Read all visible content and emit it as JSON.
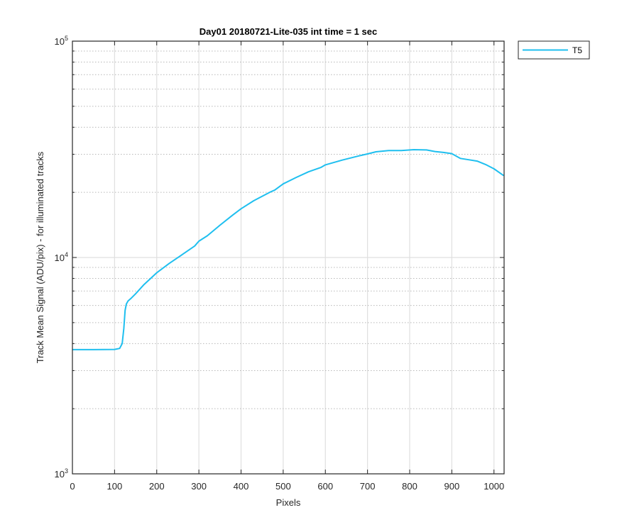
{
  "chart_data": {
    "type": "line",
    "title": "Day01 20180721-Lite-035 int time = 1 sec",
    "xlabel": "Pixels",
    "ylabel": "Track Mean Signal (ADU/pix) - for illuminated tracks",
    "xlim": [
      0,
      1024
    ],
    "ylim": [
      1000,
      100000
    ],
    "yscale": "log",
    "grid": true,
    "x_ticks": [
      0,
      100,
      200,
      300,
      400,
      500,
      600,
      700,
      800,
      900,
      1000
    ],
    "x_tick_labels": [
      "0",
      "100",
      "200",
      "300",
      "400",
      "500",
      "600",
      "700",
      "800",
      "900",
      "1000"
    ],
    "y_ticks": [
      1000,
      10000,
      100000
    ],
    "y_tick_labels": [
      {
        "base": "10",
        "exp": "3"
      },
      {
        "base": "10",
        "exp": "4"
      },
      {
        "base": "10",
        "exp": "5"
      }
    ],
    "legend_position": "outside top-right",
    "series": [
      {
        "name": "T5",
        "color": "#1fbfef",
        "x": [
          0,
          50,
          100,
          112,
          118,
          122,
          125,
          128,
          132,
          140,
          150,
          170,
          200,
          230,
          260,
          290,
          300,
          320,
          350,
          380,
          400,
          430,
          470,
          480,
          500,
          530,
          560,
          590,
          600,
          640,
          680,
          700,
          720,
          750,
          780,
          810,
          840,
          860,
          880,
          900,
          920,
          940,
          960,
          980,
          1000,
          1023
        ],
        "y": [
          3750,
          3750,
          3760,
          3800,
          4000,
          4700,
          5700,
          6100,
          6300,
          6500,
          6800,
          7500,
          8500,
          9400,
          10300,
          11300,
          11900,
          12600,
          14100,
          15700,
          16800,
          18300,
          20100,
          20500,
          21900,
          23400,
          24900,
          26100,
          26800,
          28200,
          29500,
          30100,
          30800,
          31200,
          31200,
          31500,
          31400,
          30900,
          30600,
          30200,
          28700,
          28300,
          27900,
          26900,
          25700,
          23900
        ]
      }
    ]
  }
}
